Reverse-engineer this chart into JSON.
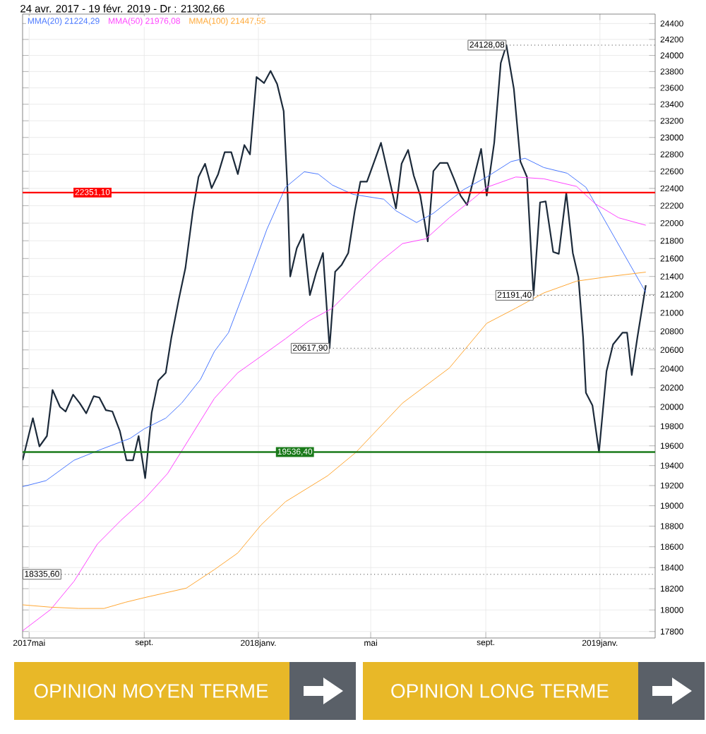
{
  "chart_data": {
    "type": "line",
    "title": "24 avr. 2017 - 19 févr. 2019 - Dr : 21302,66",
    "log": "y",
    "grid": true,
    "legend": "top left",
    "marker": "none",
    "line_style": "solid",
    "xlim": [
      "2017-04-24",
      "2019-03-01"
    ],
    "xticks": [
      {
        "value": "2017-05-01",
        "label": "2017mai"
      },
      {
        "value": "2017-09-01",
        "label": "sept."
      },
      {
        "value": "2018-01-01",
        "label": "2018janv."
      },
      {
        "value": "2018-05-01",
        "label": "mai"
      },
      {
        "value": "2018-09-01",
        "label": "sept."
      },
      {
        "value": "2019-01-01",
        "label": "2019janv."
      }
    ],
    "ylim": [
      17740,
      24520
    ],
    "yticks": [
      17800,
      18000,
      18200,
      18400,
      18600,
      18800,
      19000,
      19200,
      19400,
      19600,
      19800,
      20000,
      20200,
      20400,
      20600,
      20800,
      21000,
      21200,
      21400,
      21600,
      21800,
      22000,
      22200,
      22400,
      22600,
      22800,
      23000,
      23200,
      23400,
      23600,
      23800,
      24000,
      24200,
      24400
    ],
    "series": [
      {
        "color": "#1c2a3a",
        "x": [
          "2017-04-24",
          "2017-05-05",
          "2017-05-12",
          "2017-05-20",
          "2017-05-26",
          "2017-06-03",
          "2017-06-09",
          "2017-06-17",
          "2017-06-24",
          "2017-07-01",
          "2017-07-09",
          "2017-07-15",
          "2017-07-22",
          "2017-07-29",
          "2017-08-06",
          "2017-08-13",
          "2017-08-20",
          "2017-08-26",
          "2017-09-02",
          "2017-09-09",
          "2017-09-16",
          "2017-09-24",
          "2017-09-30",
          "2017-10-08",
          "2017-10-15",
          "2017-10-23",
          "2017-10-29",
          "2017-11-05",
          "2017-11-12",
          "2017-11-19",
          "2017-11-26",
          "2017-12-03",
          "2017-12-10",
          "2017-12-17",
          "2017-12-23",
          "2017-12-30",
          "2018-01-07",
          "2018-01-14",
          "2018-01-21",
          "2018-01-28",
          "2018-02-01",
          "2018-02-04",
          "2018-02-11",
          "2018-02-18",
          "2018-02-25",
          "2018-03-04",
          "2018-03-11",
          "2018-03-18",
          "2018-03-24",
          "2018-03-31",
          "2018-04-07",
          "2018-04-14",
          "2018-04-20",
          "2018-04-27",
          "2018-05-12",
          "2018-05-28",
          "2018-06-03",
          "2018-06-10",
          "2018-06-16",
          "2018-06-23",
          "2018-07-01",
          "2018-07-07",
          "2018-07-14",
          "2018-07-22",
          "2018-07-29",
          "2018-08-05",
          "2018-08-12",
          "2018-08-19",
          "2018-08-27",
          "2018-09-02",
          "2018-09-10",
          "2018-09-17",
          "2018-09-23",
          "2018-10-01",
          "2018-10-08",
          "2018-10-15",
          "2018-10-22",
          "2018-10-29",
          "2018-11-04",
          "2018-11-12",
          "2018-11-18",
          "2018-11-26",
          "2018-12-03",
          "2018-12-09",
          "2018-12-14",
          "2018-12-17",
          "2018-12-24",
          "2018-12-31",
          "2019-01-08",
          "2019-01-15",
          "2019-01-25",
          "2019-01-30",
          "2019-02-04",
          "2019-02-10",
          "2019-02-19"
        ],
        "values": [
          19454,
          19883,
          19594,
          19700,
          20176,
          20000,
          19952,
          20127,
          20039,
          19933,
          20111,
          20097,
          19966,
          19952,
          19749,
          19454,
          19454,
          19700,
          19274,
          19942,
          20275,
          20357,
          20733,
          21151,
          21493,
          22142,
          22533,
          22688,
          22403,
          22567,
          22825,
          22825,
          22567,
          22910,
          22799,
          23732,
          23658,
          23807,
          23646,
          23315,
          22413,
          21399,
          21715,
          21875,
          21194,
          21452,
          21662,
          20618,
          21452,
          21530,
          21662,
          22142,
          22478,
          22478,
          22936,
          22169,
          22688,
          22852,
          22550,
          22316,
          21793,
          22603,
          22698,
          22698,
          22512,
          22316,
          22208,
          22512,
          22864,
          22316,
          22936,
          23906,
          24128,
          23588,
          22714,
          22533,
          21191,
          22238,
          22250,
          21674,
          21653,
          22347,
          21662,
          21390,
          20733,
          20147,
          20014,
          19536,
          20373,
          20659,
          20784,
          20784,
          20333,
          20733,
          21303
        ]
      },
      {
        "name": "MMA(20)  21224,29",
        "color": "#4a78ff",
        "x": [
          "2017-04-24",
          "2017-05-19",
          "2017-06-18",
          "2017-07-18",
          "2017-08-17",
          "2017-09-01",
          "2017-09-24",
          "2017-10-11",
          "2017-10-31",
          "2017-11-15",
          "2017-11-30",
          "2017-12-20",
          "2018-01-10",
          "2018-01-30",
          "2018-02-19",
          "2018-03-06",
          "2018-03-21",
          "2018-04-12",
          "2018-05-15",
          "2018-05-28",
          "2018-06-19",
          "2018-07-07",
          "2018-08-08",
          "2018-09-02",
          "2018-09-28",
          "2018-10-13",
          "2018-11-02",
          "2018-11-27",
          "2018-12-17",
          "2019-01-06",
          "2019-01-26",
          "2019-02-19"
        ],
        "values": [
          19189,
          19249,
          19454,
          19568,
          19676,
          19773,
          19883,
          20039,
          20285,
          20584,
          20784,
          21320,
          21928,
          22413,
          22594,
          22567,
          22439,
          22331,
          22275,
          22142,
          22007,
          22113,
          22384,
          22533,
          22714,
          22753,
          22644,
          22577,
          22413,
          22034,
          21662,
          21224
        ]
      },
      {
        "name": "MMA(50)  21976,08",
        "color": "#ff44ff",
        "x": [
          "2017-04-24",
          "2017-05-24",
          "2017-06-18",
          "2017-07-13",
          "2017-08-07",
          "2017-09-01",
          "2017-09-26",
          "2017-10-21",
          "2017-11-15",
          "2017-12-10",
          "2018-01-04",
          "2018-01-30",
          "2018-02-24",
          "2018-03-21",
          "2018-04-14",
          "2018-05-10",
          "2018-06-04",
          "2018-06-29",
          "2018-07-24",
          "2018-08-18",
          "2018-09-02",
          "2018-10-03",
          "2018-11-02",
          "2018-12-07",
          "2018-12-27",
          "2019-01-21",
          "2019-02-19"
        ],
        "values": [
          17806,
          18004,
          18270,
          18627,
          18856,
          19064,
          19321,
          19700,
          20089,
          20357,
          20533,
          20720,
          20912,
          21050,
          21298,
          21556,
          21768,
          21822,
          22061,
          22275,
          22413,
          22533,
          22512,
          22423,
          22222,
          22061,
          21976
        ]
      },
      {
        "name": "MMA(100)  21447,55",
        "color": "#ffa733",
        "x": [
          "2017-04-24",
          "2017-05-24",
          "2017-06-23",
          "2017-07-20",
          "2017-08-12",
          "2017-09-01",
          "2017-10-16",
          "2017-11-15",
          "2017-12-10",
          "2018-01-04",
          "2018-01-30",
          "2018-03-16",
          "2018-04-15",
          "2018-06-04",
          "2018-07-24",
          "2018-09-02",
          "2018-10-03",
          "2018-11-02",
          "2018-12-07",
          "2019-01-11",
          "2019-02-19"
        ],
        "values": [
          18048,
          18026,
          18014,
          18014,
          18072,
          18115,
          18205,
          18381,
          18540,
          18813,
          19040,
          19298,
          19532,
          20039,
          20407,
          20886,
          21050,
          21218,
          21348,
          21399,
          21448
        ]
      }
    ],
    "ref_lines": [
      {
        "axis": "y",
        "value": 24128.08,
        "label": "24128,08",
        "color": "#333333",
        "line_style": "dotted"
      },
      {
        "axis": "y",
        "value": 22351.1,
        "label": "22351,10",
        "color": "#ff0000",
        "line_style": "solid"
      },
      {
        "axis": "y",
        "value": 21191.4,
        "label": "21191,40",
        "color": "#333333",
        "line_style": "dotted"
      },
      {
        "axis": "y",
        "value": 20617.9,
        "label": "20617,90",
        "color": "#333333",
        "line_style": "dotted"
      },
      {
        "axis": "y",
        "value": 19536.4,
        "label": "19536,40",
        "color": "#1a7a1a",
        "line_style": "solid"
      },
      {
        "axis": "y",
        "value": 18335.6,
        "label": "18335,60",
        "color": "#333333",
        "line_style": "dotted"
      }
    ],
    "annotations": [
      "OPINION MOYEN TERME",
      "OPINION LONG TERME"
    ]
  }
}
